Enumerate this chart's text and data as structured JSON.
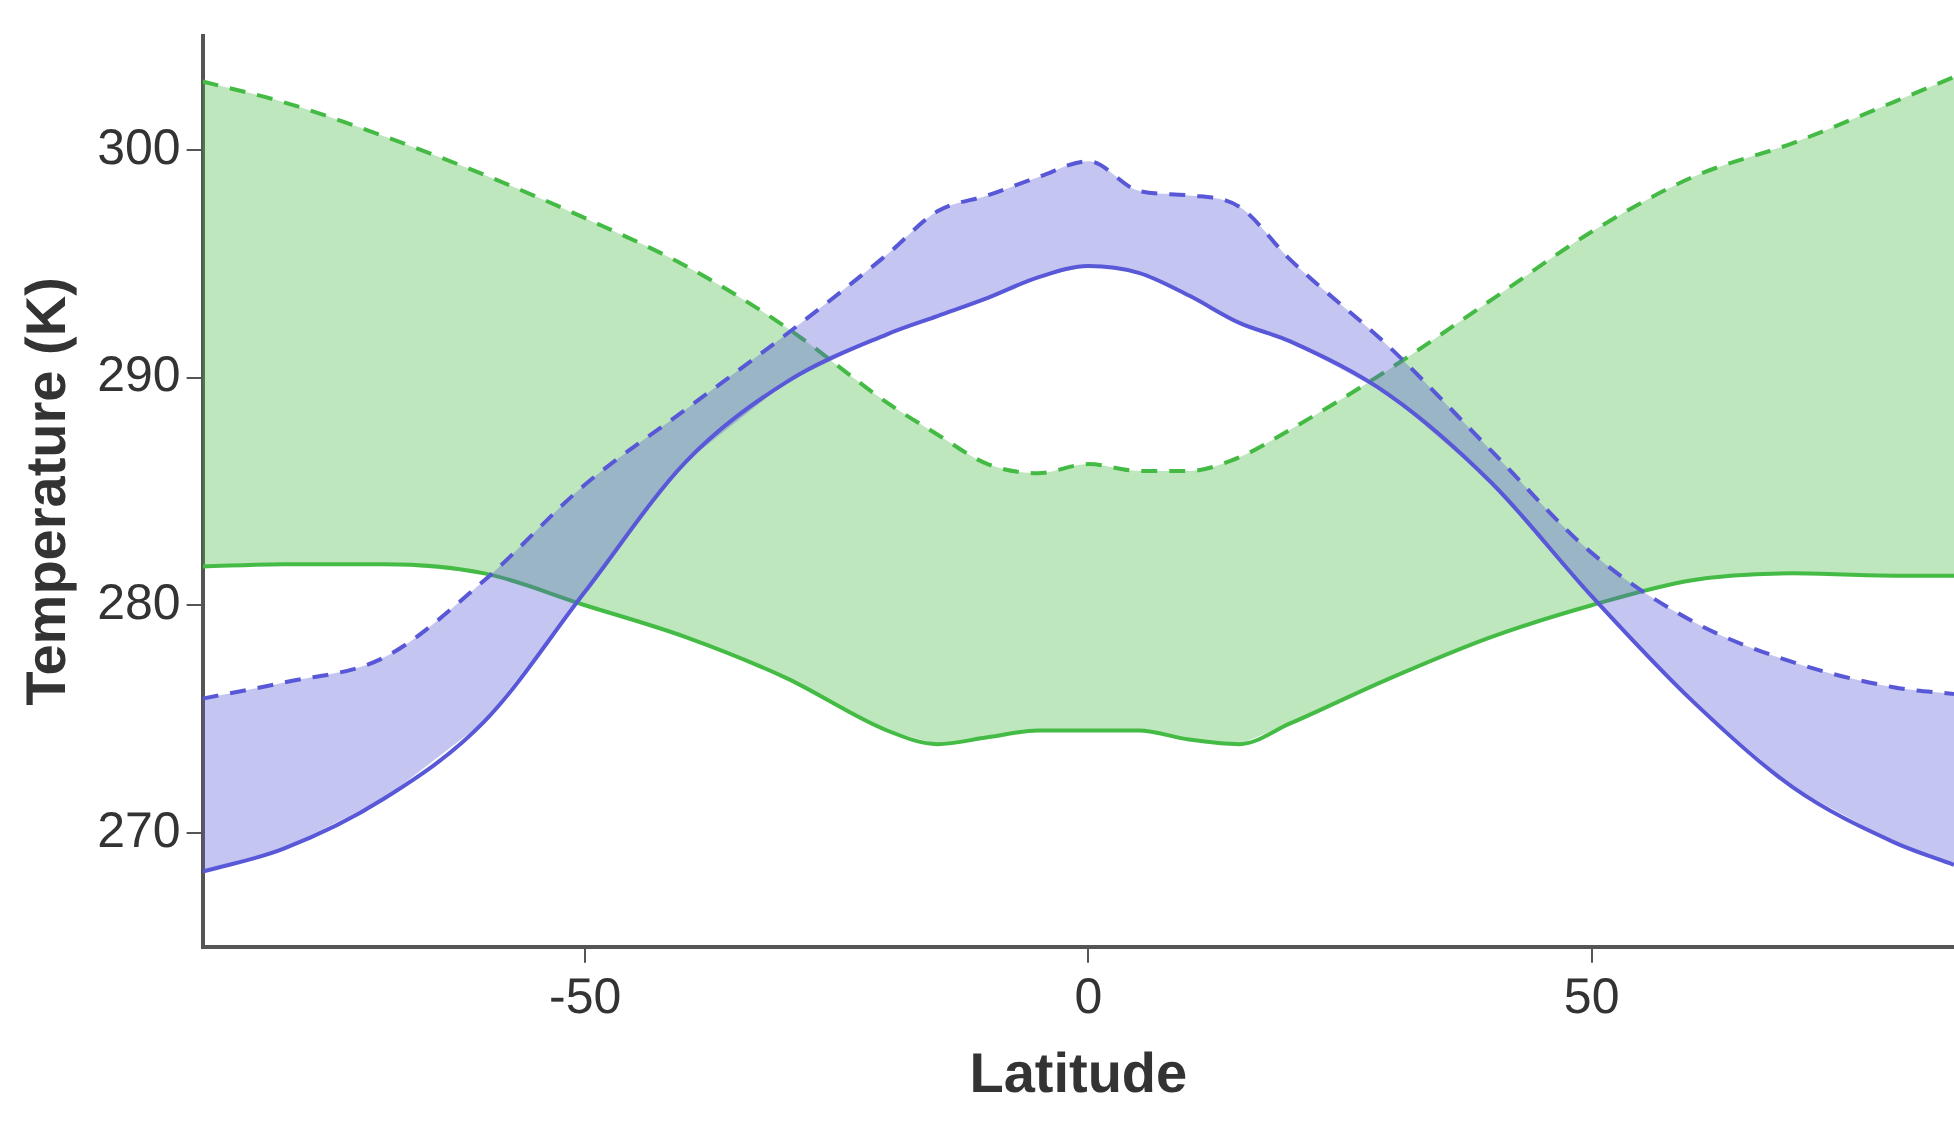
{
  "chart_data": {
    "type": "line",
    "xlabel": "Latitude",
    "ylabel": "Temperature (K)",
    "x": [
      -88,
      -80,
      -70,
      -60,
      -50,
      -40,
      -30,
      -20,
      -15,
      -10,
      -5,
      0,
      5,
      10,
      15,
      20,
      30,
      40,
      50,
      60,
      70,
      80,
      86
    ],
    "xlim": [
      -88,
      86
    ],
    "xticks": [
      -50,
      0,
      50
    ],
    "ylim": [
      265,
      305
    ],
    "yticks": [
      270,
      280,
      290,
      300
    ],
    "grid": false,
    "legend": false,
    "marker": "none",
    "line_style": "solid",
    "series": [
      {
        "color": "#5858d8",
        "values": [
          268.3,
          269.3,
          271.5,
          274.9,
          280.6,
          286.3,
          289.8,
          291.9,
          292.7,
          293.5,
          294.4,
          294.9,
          294.6,
          293.6,
          292.4,
          291.6,
          289.2,
          285.4,
          280.4,
          275.8,
          272,
          269.6,
          268.6
        ]
      },
      {
        "color": "#5858d8",
        "line_style": "dashed",
        "values": [
          275.9,
          276.6,
          277.7,
          281.1,
          285.3,
          288.6,
          291.9,
          295.4,
          297.3,
          298,
          298.8,
          299.5,
          298.2,
          298,
          297.5,
          295.2,
          291.3,
          286.8,
          282.3,
          279.3,
          277.5,
          276.4,
          276.1
        ],
        "lower": [
          268.3,
          269.3,
          271.5,
          274.9,
          280.6,
          286.3,
          289.8,
          291.9,
          292.7,
          293.5,
          294.4,
          294.9,
          294.6,
          293.6,
          292.4,
          291.6,
          289.2,
          285.4,
          280.4,
          275.8,
          272,
          269.6,
          268.6
        ],
        "upper": [
          275.9,
          276.6,
          277.7,
          281.1,
          285.3,
          288.6,
          291.9,
          295.4,
          297.3,
          298,
          298.8,
          299.5,
          298.2,
          298,
          297.5,
          295.2,
          291.3,
          286.8,
          282.3,
          279.3,
          277.5,
          276.4,
          276.1
        ]
      },
      {
        "color": "#44bb44",
        "values": [
          281.7,
          281.8,
          281.8,
          281.4,
          280,
          278.6,
          276.8,
          274.5,
          273.9,
          274.2,
          274.5,
          274.5,
          274.5,
          274.1,
          273.9,
          274.8,
          276.8,
          278.6,
          280,
          281.1,
          281.4,
          281.3,
          281.3
        ]
      },
      {
        "color": "#44bb44",
        "line_style": "dashed",
        "values": [
          303,
          302.1,
          300.6,
          298.9,
          297,
          294.9,
          292.2,
          288.9,
          287.5,
          286.2,
          285.8,
          286.2,
          285.9,
          285.9,
          286.5,
          287.7,
          290.4,
          293.4,
          296.4,
          298.8,
          300.3,
          302.1,
          303.2
        ],
        "lower": [
          281.7,
          281.8,
          281.8,
          281.4,
          280,
          278.6,
          276.8,
          274.5,
          273.9,
          274.2,
          274.5,
          274.5,
          274.5,
          274.1,
          273.9,
          274.8,
          276.8,
          278.6,
          280,
          281.1,
          281.4,
          281.3,
          281.3
        ],
        "upper": [
          303,
          302.1,
          300.6,
          298.9,
          297,
          294.9,
          292.2,
          288.9,
          287.5,
          286.2,
          285.8,
          286.2,
          285.9,
          285.9,
          286.5,
          287.7,
          290.4,
          293.4,
          296.4,
          298.8,
          300.3,
          302.1,
          303.2
        ]
      }
    ]
  }
}
